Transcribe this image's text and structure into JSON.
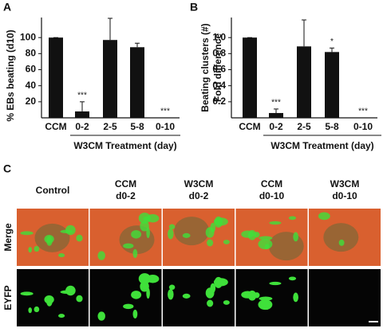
{
  "chart_data": [
    {
      "type": "bar",
      "panel": "A",
      "ylabel": "% EBs beating (d10)",
      "categories": [
        "CCM",
        "0-2",
        "2-5",
        "5-8",
        "0-10"
      ],
      "values": [
        100,
        8,
        97,
        88,
        0
      ],
      "errors": [
        0,
        12,
        27,
        5,
        0
      ],
      "annotations": [
        null,
        "***",
        null,
        null,
        "***"
      ],
      "xlabel": "W3CM Treatment (day)",
      "color": "#111111",
      "ylim": [
        0,
        125
      ],
      "yticks": [
        20,
        40,
        60,
        80,
        100
      ]
    },
    {
      "type": "bar",
      "panel": "B",
      "ylabel": [
        "Beating clusters (#)",
        "Fold difference"
      ],
      "categories": [
        "CCM",
        "0-2",
        "2-5",
        "5-8",
        "0-10"
      ],
      "values": [
        1.0,
        0.06,
        0.89,
        0.82,
        0
      ],
      "errors": [
        0,
        0.05,
        0.33,
        0.05,
        0
      ],
      "annotations": [
        null,
        "***",
        null,
        "*",
        "***"
      ],
      "xlabel": "W3CM Treatment (day)",
      "color": "#111111",
      "ylim": [
        0,
        1.25
      ],
      "yticks": [
        0.2,
        0.4,
        0.6,
        {
          "value": 0.8,
          "label": "0.8"
        },
        {
          "value": 1.0,
          "label": "1.0"
        }
      ]
    }
  ],
  "panel_c": {
    "letter": "C",
    "columns": [
      [
        "Control"
      ],
      [
        "CCM",
        "d0-2"
      ],
      [
        "W3CM",
        "d0-2"
      ],
      [
        "CCM",
        "d0-10"
      ],
      [
        "W3CM",
        "d0-10"
      ]
    ],
    "rows": [
      "Merge",
      "EYFP"
    ]
  }
}
